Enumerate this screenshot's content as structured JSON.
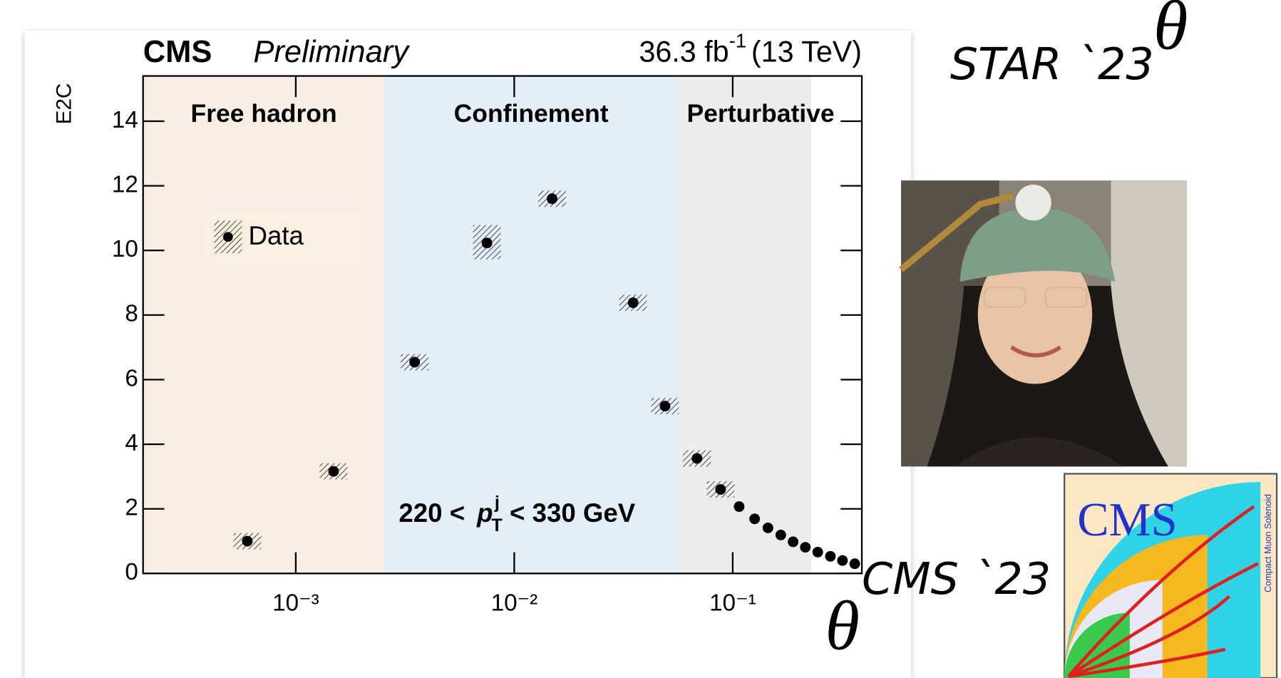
{
  "chart_data": {
    "type": "scatter",
    "experiment": "CMS",
    "status": "Preliminary",
    "luminosity": "36.3 fb",
    "luminosity_exponent": "-1",
    "energy": "(13 TeV)",
    "y_label": "E2C",
    "legend": "Data",
    "annotation": {
      "prefix": "220 < ",
      "variable": "p",
      "superscript": "j",
      "subscript": "T",
      "suffix": " < 330 GeV"
    },
    "regions": [
      {
        "label": "Free hadron",
        "xmin": 0.0002,
        "xmax": 0.00255,
        "color": "#f8eee4"
      },
      {
        "label": "Confinement",
        "xmin": 0.00255,
        "xmax": 0.056,
        "color": "#e3eef9"
      },
      {
        "label": "Perturbative",
        "xmin": 0.056,
        "xmax": 0.228,
        "color": "#ececec"
      }
    ],
    "x": [
      0.0006,
      0.00149,
      0.0035,
      0.0075,
      0.0149,
      0.035,
      0.049,
      0.0686,
      0.088,
      0.107,
      0.126,
      0.145,
      0.166,
      0.189,
      0.215,
      0.245,
      0.28,
      0.318,
      0.362
    ],
    "series": [
      {
        "name": "Data",
        "color": "#000000",
        "values": [
          1.0,
          3.16,
          6.54,
          10.23,
          11.6,
          8.38,
          5.18,
          3.56,
          2.6,
          2.07,
          1.69,
          1.41,
          1.19,
          0.98,
          0.81,
          0.66,
          0.53,
          0.4,
          0.3
        ]
      }
    ],
    "xlim": [
      0.0002,
      0.39
    ],
    "xlog": true,
    "xticks": [
      {
        "value": 0.001,
        "label": "10⁻³"
      },
      {
        "value": 0.01,
        "label": "10⁻²"
      },
      {
        "value": 0.1,
        "label": "10⁻¹"
      }
    ],
    "ylim": [
      0,
      15.4
    ],
    "yticks": [
      0,
      2,
      4,
      6,
      8,
      10,
      12,
      14
    ]
  },
  "slide": {
    "star_label": "STAR `23",
    "cms_label": "CMS `23",
    "theta_top": "θ",
    "theta_axis": "θ",
    "logo_title": "CMS",
    "logo_subtitle": "Compact Muon Solenoid"
  }
}
